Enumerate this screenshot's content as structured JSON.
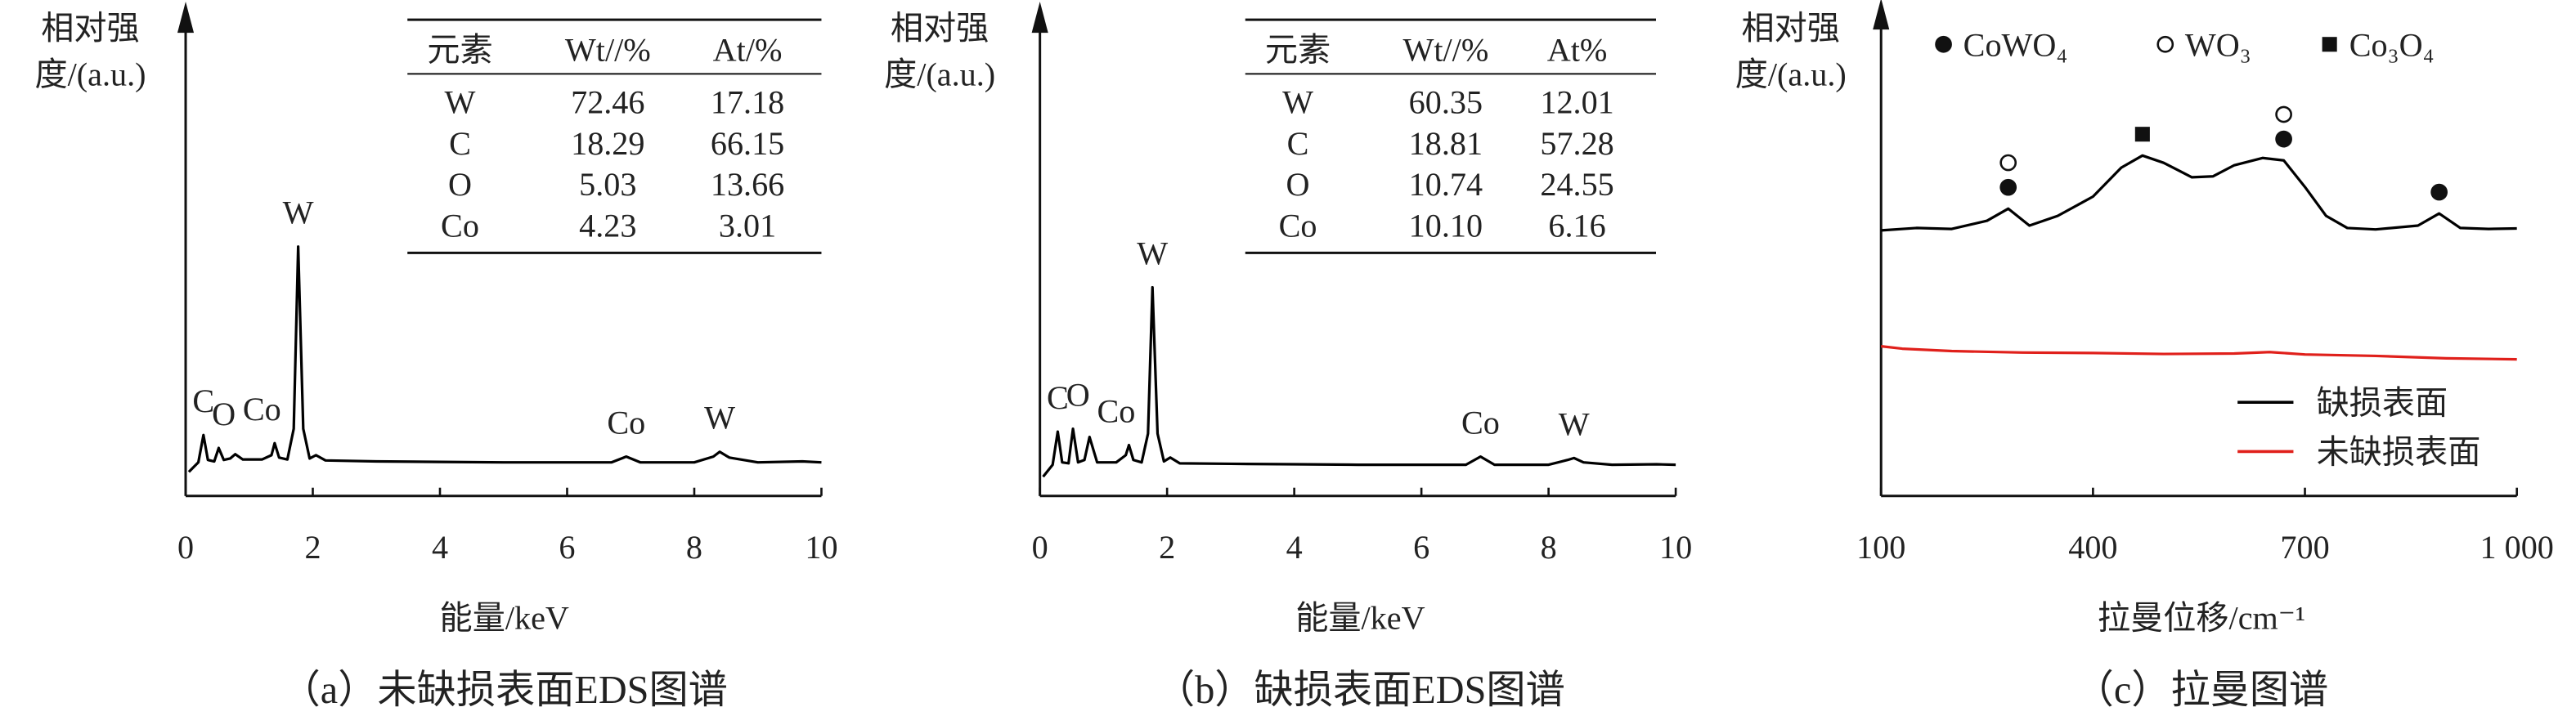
{
  "chart_data": [
    {
      "type": "line",
      "ylabel_lines": [
        "相对强",
        "度/(a.u.)"
      ],
      "xlabel": "能量/keV",
      "caption": "（a）未缺损表面EDS图谱",
      "xlim": [
        0,
        10
      ],
      "xticks": [
        0,
        2,
        4,
        6,
        8,
        10
      ],
      "ylim": [
        0,
        100
      ],
      "series": [
        {
          "color": "#000000",
          "x": [
            0.05,
            0.2,
            0.28,
            0.35,
            0.45,
            0.52,
            0.6,
            0.7,
            0.78,
            0.9,
            1.2,
            1.35,
            1.4,
            1.47,
            1.6,
            1.7,
            1.77,
            1.85,
            1.95,
            2.05,
            2.2,
            3,
            4,
            5,
            6,
            6.7,
            6.93,
            7.15,
            8,
            8.3,
            8.4,
            8.55,
            9,
            9.7,
            10
          ],
          "values": [
            5,
            7,
            12.7,
            7.5,
            7.2,
            10,
            7.5,
            7.8,
            8.7,
            7.6,
            7.6,
            8.5,
            11,
            8,
            7.6,
            14,
            52,
            14,
            7.8,
            8.5,
            7.4,
            7.2,
            7.1,
            7,
            7,
            7,
            8.2,
            7,
            7,
            8.2,
            9.2,
            8,
            7,
            7.2,
            7
          ]
        }
      ],
      "annotations": [
        {
          "text": "C",
          "x": 0.28
        },
        {
          "text": "O",
          "x": 0.6
        },
        {
          "text": "Co",
          "x": 1.2
        },
        {
          "text": "W",
          "x": 1.77
        },
        {
          "text": "Co",
          "x": 6.93
        },
        {
          "text": "W",
          "x": 8.4
        }
      ],
      "table": {
        "columns": [
          "元素",
          "Wt//%",
          "At/%"
        ],
        "rows": [
          [
            "W",
            "72.46",
            "17.18"
          ],
          [
            "C",
            "18.29",
            "66.15"
          ],
          [
            "O",
            "5.03",
            "13.66"
          ],
          [
            "Co",
            "4.23",
            "3.01"
          ]
        ]
      }
    },
    {
      "type": "line",
      "ylabel_lines": [
        "相对强",
        "度/(a.u.)"
      ],
      "xlabel": "能量/keV",
      "caption": "（b）缺损表面EDS图谱",
      "xlim": [
        0,
        10
      ],
      "xticks": [
        0,
        2,
        4,
        6,
        8,
        10
      ],
      "ylim": [
        0,
        100
      ],
      "series": [
        {
          "color": "#000000",
          "x": [
            0.05,
            0.2,
            0.28,
            0.35,
            0.45,
            0.52,
            0.6,
            0.7,
            0.78,
            0.9,
            1.2,
            1.35,
            1.4,
            1.47,
            1.6,
            1.7,
            1.77,
            1.85,
            1.95,
            2.05,
            2.2,
            3,
            4,
            5,
            6,
            6.7,
            6.93,
            7.15,
            8,
            8.3,
            8.4,
            8.55,
            9,
            9.7,
            10
          ],
          "values": [
            4,
            6.5,
            13.4,
            7,
            6.8,
            14,
            7,
            7.5,
            12.3,
            7,
            7,
            8.5,
            10.6,
            7.5,
            7,
            13,
            43.5,
            13,
            7.2,
            8,
            6.8,
            6.7,
            6.6,
            6.5,
            6.5,
            6.5,
            8.2,
            6.5,
            6.5,
            7.5,
            7.9,
            7,
            6.5,
            6.6,
            6.5
          ]
        }
      ],
      "annotations": [
        {
          "text": "C",
          "x": 0.28
        },
        {
          "text": "O",
          "x": 0.6
        },
        {
          "text": "Co",
          "x": 1.2
        },
        {
          "text": "W",
          "x": 1.77
        },
        {
          "text": "Co",
          "x": 6.93
        },
        {
          "text": "W",
          "x": 8.4
        }
      ],
      "table": {
        "columns": [
          "元素",
          "Wt//%",
          "At%"
        ],
        "rows": [
          [
            "W",
            "60.35",
            "12.01"
          ],
          [
            "C",
            "18.81",
            "57.28"
          ],
          [
            "O",
            "10.74",
            "24.55"
          ],
          [
            "Co",
            "10.10",
            "6.16"
          ]
        ]
      }
    },
    {
      "type": "line",
      "ylabel_lines": [
        "相对强",
        "度/(a.u.)"
      ],
      "xlabel": "拉曼位移/cm⁻¹",
      "caption": "（c）拉曼图谱",
      "xlim": [
        100,
        1000
      ],
      "xticks": [
        100,
        400,
        700,
        {
          "value": 1000,
          "label": "1 000"
        }
      ],
      "ylim": [
        0,
        100
      ],
      "series": [
        {
          "name": "缺损表面",
          "color": "#000000",
          "x": [
            100,
            150,
            200,
            250,
            280,
            310,
            350,
            400,
            440,
            470,
            500,
            540,
            570,
            600,
            640,
            670,
            700,
            730,
            760,
            800,
            860,
            890,
            920,
            960,
            1000
          ],
          "values": [
            55,
            55.5,
            55.3,
            57,
            59.5,
            56,
            58,
            62,
            68,
            70.5,
            69,
            66,
            66.2,
            68.5,
            70,
            69.5,
            64,
            58,
            55.5,
            55.2,
            56,
            58.5,
            55.5,
            55.3,
            55.4
          ]
        },
        {
          "name": "未缺损表面",
          "color": "#e0201b",
          "x": [
            100,
            130,
            200,
            300,
            400,
            500,
            600,
            650,
            700,
            800,
            900,
            1000
          ],
          "values": [
            31,
            30.5,
            30,
            29.7,
            29.6,
            29.4,
            29.5,
            29.8,
            29.3,
            29,
            28.5,
            28.3
          ]
        }
      ],
      "phase_legend": [
        {
          "name": "CoWO₄",
          "symbol": "filled-circle"
        },
        {
          "name": "WO₃",
          "symbol": "open-circle"
        },
        {
          "name": "Co₃O₄",
          "symbol": "filled-square"
        }
      ],
      "peaks": [
        {
          "x": 280,
          "markers": [
            0,
            1
          ]
        },
        {
          "x": 470,
          "markers": [
            2
          ]
        },
        {
          "x": 670,
          "markers": [
            0,
            1
          ]
        },
        {
          "x": 890,
          "markers": [
            0
          ]
        }
      ]
    }
  ]
}
